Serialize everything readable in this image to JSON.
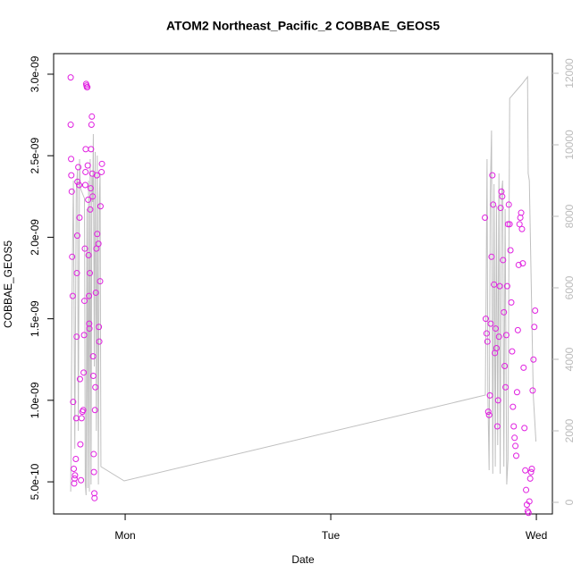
{
  "chart_data": {
    "type": "scatter",
    "title": "ATOM2 Northeast_Pacific_2 COBBAE_GEOS5",
    "x_label": "Date",
    "y_label": "COBBAE_GEOS5",
    "xlim": [
      -0.348,
      2.078
    ],
    "xticks": [
      {
        "value": 0,
        "label": "Mon"
      },
      {
        "value": 1,
        "label": "Tue"
      },
      {
        "value": 2,
        "label": "Wed"
      }
    ],
    "ylim": [
      3.03e-10,
      3.126e-09
    ],
    "yticks": [
      {
        "value": 5e-10,
        "label": "5.0e-10"
      },
      {
        "value": 1e-09,
        "label": "1.0e-09"
      },
      {
        "value": 1.5e-09,
        "label": "1.5e-09"
      },
      {
        "value": 2e-09,
        "label": "2.0e-09"
      },
      {
        "value": 2.5e-09,
        "label": "2.5e-09"
      },
      {
        "value": 3e-09,
        "label": "3.0e-09"
      }
    ],
    "y2lim": [
      -325,
      12550
    ],
    "y2ticks": [
      0,
      2000,
      4000,
      6000,
      8000,
      10000,
      12000
    ],
    "series": [
      {
        "color": "#e020e0",
        "marker": "circle",
        "x": [
          -0.265,
          -0.265,
          -0.263,
          -0.262,
          -0.26,
          -0.258,
          -0.255,
          -0.253,
          -0.25,
          -0.248,
          -0.246,
          -0.244,
          -0.24,
          -0.238,
          -0.236,
          -0.235,
          -0.233,
          -0.232,
          -0.228,
          -0.224,
          -0.222,
          -0.22,
          -0.218,
          -0.215,
          -0.212,
          -0.208,
          -0.204,
          -0.202,
          -0.2,
          -0.198,
          -0.196,
          -0.194,
          -0.193,
          -0.192,
          -0.19,
          -0.188,
          -0.186,
          -0.184,
          -0.182,
          -0.18,
          -0.178,
          -0.176,
          -0.175,
          -0.174,
          -0.172,
          -0.17,
          -0.168,
          -0.166,
          -0.164,
          -0.162,
          -0.16,
          -0.158,
          -0.156,
          -0.155,
          -0.153,
          -0.152,
          -0.15,
          -0.149,
          -0.147,
          -0.145,
          -0.143,
          -0.14,
          -0.138,
          -0.136,
          -0.13,
          -0.128,
          -0.126,
          -0.122,
          -0.12,
          -0.115,
          -0.113,
          1.75,
          1.754,
          1.758,
          1.762,
          1.766,
          1.77,
          1.774,
          1.778,
          1.782,
          1.786,
          1.79,
          1.794,
          1.798,
          1.802,
          1.806,
          1.81,
          1.814,
          1.818,
          1.822,
          1.826,
          1.83,
          1.834,
          1.838,
          1.842,
          1.846,
          1.85,
          1.854,
          1.858,
          1.862,
          1.866,
          1.87,
          1.874,
          1.878,
          1.882,
          1.886,
          1.89,
          1.894,
          1.898,
          1.902,
          1.906,
          1.91,
          1.914,
          1.918,
          1.922,
          1.926,
          1.93,
          1.934,
          1.938,
          1.942,
          1.946,
          1.95,
          1.954,
          1.958,
          1.962,
          1.966,
          1.97,
          1.974,
          1.978,
          1.982,
          1.986,
          1.99,
          1.994
        ],
        "values": [
          2.98e-09,
          2.69e-09,
          2.48e-09,
          2.38e-09,
          2.28e-09,
          1.88e-09,
          1.64e-09,
          9.9e-10,
          5.8e-10,
          4.9e-10,
          5.2e-10,
          5.4e-10,
          6.4e-10,
          8.9e-10,
          1.39e-09,
          1.78e-09,
          2.01e-09,
          2.34e-09,
          2.43e-09,
          2.32e-09,
          2.12e-09,
          1.13e-09,
          7.3e-10,
          5.1e-10,
          8.9e-10,
          9.3e-10,
          9.4e-10,
          1.17e-09,
          1.4e-09,
          1.61e-09,
          1.93e-09,
          2.32e-09,
          2.4e-09,
          2.54e-09,
          2.94e-09,
          2.93e-09,
          2.92e-09,
          2.92e-09,
          2.44e-09,
          2.23e-09,
          1.89e-09,
          1.64e-09,
          1.47e-09,
          1.44e-09,
          1.78e-09,
          2.17e-09,
          2.3e-09,
          2.54e-09,
          2.69e-09,
          2.74e-09,
          2.39e-09,
          2.25e-09,
          1.27e-09,
          1.15e-09,
          6.7e-10,
          5.6e-10,
          4.3e-10,
          4e-10,
          9.4e-10,
          1.08e-09,
          1.66e-09,
          1.93e-09,
          2.38e-09,
          2.02e-09,
          1.96e-09,
          1.45e-09,
          1.36e-09,
          1.73e-09,
          2.19e-09,
          2.4e-09,
          2.45e-09,
          2.12e-09,
          1.5e-09,
          1.41e-09,
          1.36e-09,
          9.3e-10,
          9.1e-10,
          1.03e-09,
          1.47e-09,
          1.88e-09,
          2.38e-09,
          2.2e-09,
          1.71e-09,
          1.29e-09,
          1.44e-09,
          1.32e-09,
          8.4e-10,
          1e-09,
          1.39e-09,
          1.7e-09,
          2.18e-09,
          2.28e-09,
          2.25e-09,
          1.86e-09,
          1.54e-09,
          1.21e-09,
          1.08e-09,
          1.4e-09,
          1.7e-09,
          2.08e-09,
          2.2e-09,
          2.08e-09,
          1.92e-09,
          1.6e-09,
          1.3e-09,
          9.6e-10,
          8.4e-10,
          7.7e-10,
          7.2e-10,
          6.6e-10,
          1.05e-09,
          1.43e-09,
          1.83e-09,
          2.08e-09,
          2.12e-09,
          2.15e-09,
          2.05e-09,
          1.84e-09,
          1.2e-09,
          8.3e-10,
          5.7e-10,
          4.5e-10,
          3.6e-10,
          3.2e-10,
          3.1e-10,
          3.8e-10,
          5.2e-10,
          5.6e-10,
          5.8e-10,
          1.06e-09,
          1.25e-09,
          1.45e-09,
          1.55e-09
        ]
      },
      {
        "color": "#c0c0c0",
        "marker": "line",
        "axis": "y2",
        "x": [
          -0.265,
          -0.258,
          -0.252,
          -0.245,
          -0.238,
          -0.232,
          -0.228,
          -0.222,
          -0.218,
          -0.212,
          -0.205,
          -0.198,
          -0.194,
          -0.19,
          -0.186,
          -0.182,
          -0.178,
          -0.174,
          -0.17,
          -0.166,
          -0.162,
          -0.158,
          -0.155,
          -0.15,
          -0.146,
          -0.14,
          -0.136,
          -0.13,
          -0.126,
          -0.122,
          -0.118,
          -0.005,
          1.752,
          1.76,
          1.764,
          1.77,
          1.776,
          1.782,
          1.788,
          1.794,
          1.8,
          1.806,
          1.812,
          1.818,
          1.824,
          1.83,
          1.836,
          1.842,
          1.848,
          1.856,
          1.862,
          1.87,
          1.9,
          1.93,
          1.957,
          1.96,
          1.966,
          1.985,
          1.998
        ],
        "values": [
          300,
          6000,
          9000,
          1500,
          8700,
          9300,
          2000,
          9600,
          8800,
          8700,
          8600,
          8500,
          500,
          200,
          8200,
          400,
          9000,
          300,
          9600,
          500,
          9100,
          8400,
          10300,
          3800,
          9800,
          2000,
          9700,
          500,
          8500,
          9200,
          1000,
          600,
          3000,
          9600,
          3000,
          900,
          8600,
          10400,
          800,
          8900,
          1000,
          8300,
          1600,
          9200,
          800,
          8600,
          9000,
          1000,
          8200,
          500,
          1200,
          11300,
          11500,
          11700,
          11900,
          9200,
          9000,
          3000,
          1700
        ]
      }
    ]
  }
}
